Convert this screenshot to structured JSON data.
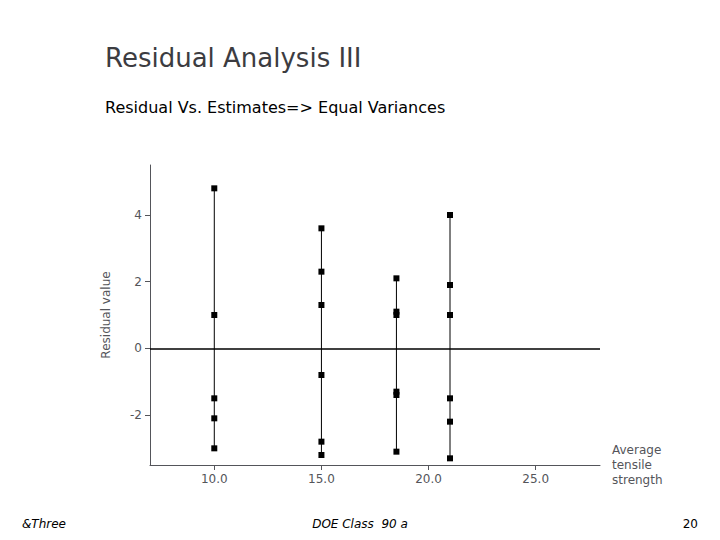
{
  "chart_data": {
    "type": "scatter",
    "title": "Residual Analysis III",
    "subtitle": "Residual Vs. Estimates=> Equal Variances",
    "annotations": [
      "&Three",
      "DOE Class  90 a",
      "20"
    ],
    "x_label": "Average\ntensile\nstrength",
    "y_label": "Residual value",
    "x": [
      10.0,
      15.0,
      18.5,
      21.0
    ],
    "values": [
      [
        4.8,
        1.0,
        -1.5,
        -2.1,
        -3.0
      ],
      [
        3.6,
        2.3,
        1.3,
        -0.8,
        -2.8,
        -3.2
      ],
      [
        2.1,
        1.1,
        1.0,
        -1.3,
        -1.4,
        -3.1
      ],
      [
        4.0,
        1.9,
        1.0,
        -1.5,
        -2.2,
        -3.3
      ]
    ],
    "color": "#000000",
    "marker": "square",
    "xlim": [
      7,
      28
    ],
    "xticks": [
      {
        "value": 10,
        "label": "10.0"
      },
      {
        "value": 15,
        "label": "15.0"
      },
      {
        "value": 20,
        "label": "20.0"
      },
      {
        "value": 25,
        "label": "25.0"
      }
    ],
    "ylim": [
      -3.5,
      5.5
    ],
    "yticks": [
      -2,
      0,
      2,
      4
    ],
    "grid": false
  }
}
